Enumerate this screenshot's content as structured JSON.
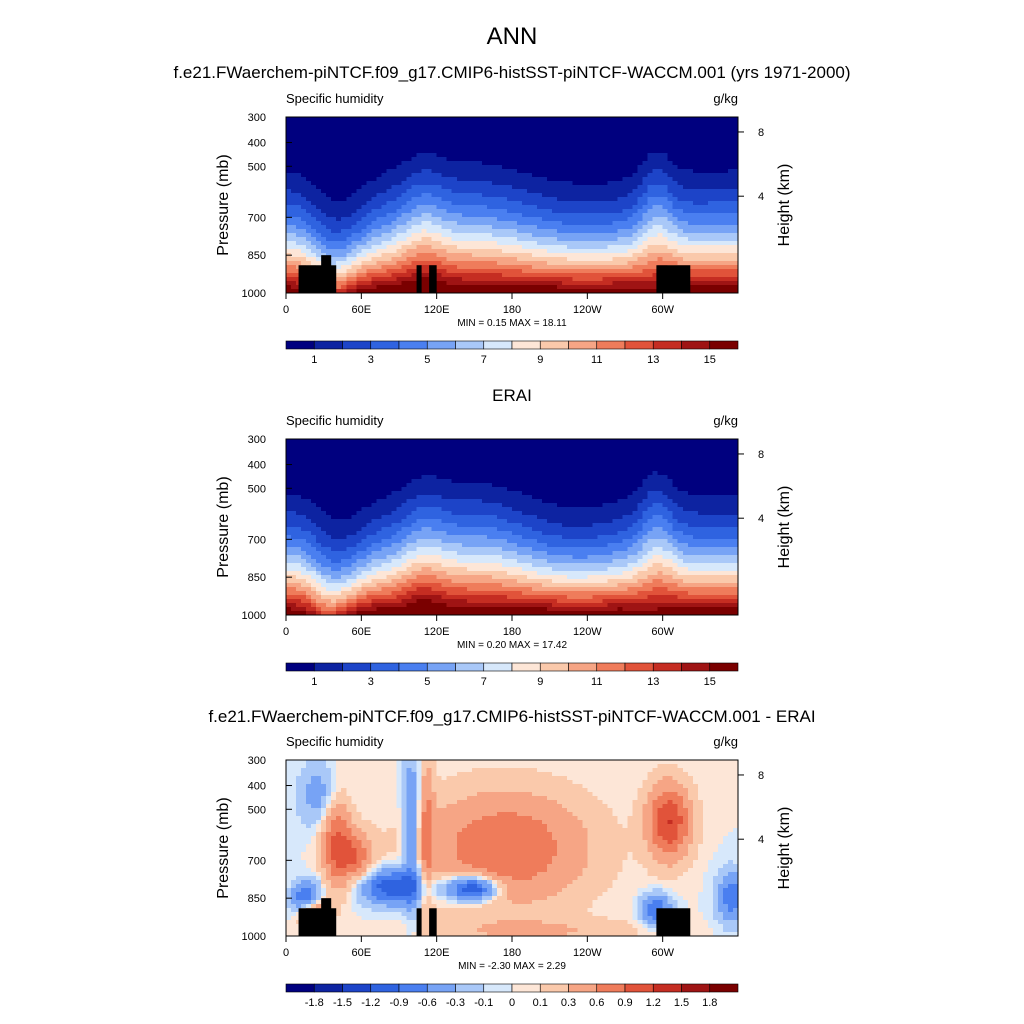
{
  "main_title": "ANN",
  "colors": {
    "abs_levels": [
      "#00007f",
      "#0d23a1",
      "#1d44c8",
      "#2f63e0",
      "#4a7ff0",
      "#77a3f5",
      "#a9c8f8",
      "#d7e8fb",
      "#fde6d7",
      "#fac9ab",
      "#f6a585",
      "#ef7c5b",
      "#e1533a",
      "#c52d22",
      "#9f1414",
      "#7a0000"
    ],
    "diff_levels": [
      "#00007f",
      "#0d23a1",
      "#1d44c8",
      "#2f63e0",
      "#4a7ff0",
      "#77a3f5",
      "#a9c8f8",
      "#d7e8fb",
      "#fde6d7",
      "#fac9ab",
      "#f6a585",
      "#ef7c5b",
      "#e1533a",
      "#c52d22",
      "#9f1414",
      "#7a0000"
    ],
    "topography": "#000000"
  },
  "chart_data": [
    {
      "type": "heatmap",
      "title": "f.e21.FWaerchem-piNTCF.f09_g17.CMIP6-histSST-piNTCF-WACCM.001 (yrs 1971-2000)",
      "left_label": "Specific humidity",
      "units": "g/kg",
      "ylabel": "Pressure (mb)",
      "ylabel_right": "Height (km)",
      "x_ticks": [
        "0",
        "60E",
        "120E",
        "180",
        "120W",
        "60W"
      ],
      "y_ticks": [
        "300",
        "400",
        "500",
        "700",
        "850",
        "1000"
      ],
      "y_right_ticks": [
        "8",
        "4"
      ],
      "stats": "MIN =   0.15  MAX =  18.11",
      "min": 0.15,
      "max": 18.11,
      "colorbar_labels": [
        "1",
        "3",
        "5",
        "7",
        "9",
        "11",
        "13",
        "15"
      ]
    },
    {
      "type": "heatmap",
      "title": "ERAI",
      "left_label": "Specific humidity",
      "units": "g/kg",
      "ylabel": "Pressure (mb)",
      "ylabel_right": "Height (km)",
      "x_ticks": [
        "0",
        "60E",
        "120E",
        "180",
        "120W",
        "60W"
      ],
      "y_ticks": [
        "300",
        "400",
        "500",
        "700",
        "850",
        "1000"
      ],
      "y_right_ticks": [
        "8",
        "4"
      ],
      "stats": "MIN =   0.20  MAX =  17.42",
      "min": 0.2,
      "max": 17.42,
      "colorbar_labels": [
        "1",
        "3",
        "5",
        "7",
        "9",
        "11",
        "13",
        "15"
      ]
    },
    {
      "type": "heatmap",
      "title": "f.e21.FWaerchem-piNTCF.f09_g17.CMIP6-histSST-piNTCF-WACCM.001 - ERAI",
      "left_label": "Specific humidity",
      "units": "g/kg",
      "ylabel": "Pressure (mb)",
      "ylabel_right": "Height (km)",
      "x_ticks": [
        "0",
        "60E",
        "120E",
        "180",
        "120W",
        "60W"
      ],
      "y_ticks": [
        "300",
        "400",
        "500",
        "700",
        "850",
        "1000"
      ],
      "y_right_ticks": [
        "8",
        "4"
      ],
      "stats": "MIN =  -2.30  MAX =   2.29",
      "min": -2.3,
      "max": 2.29,
      "colorbar_labels": [
        "-1.8",
        "-1.5",
        "-1.2",
        "-0.9",
        "-0.6",
        "-0.3",
        "-0.1",
        "0",
        "0.1",
        "0.3",
        "0.6",
        "0.9",
        "1.2",
        "1.5",
        "1.8"
      ]
    }
  ]
}
